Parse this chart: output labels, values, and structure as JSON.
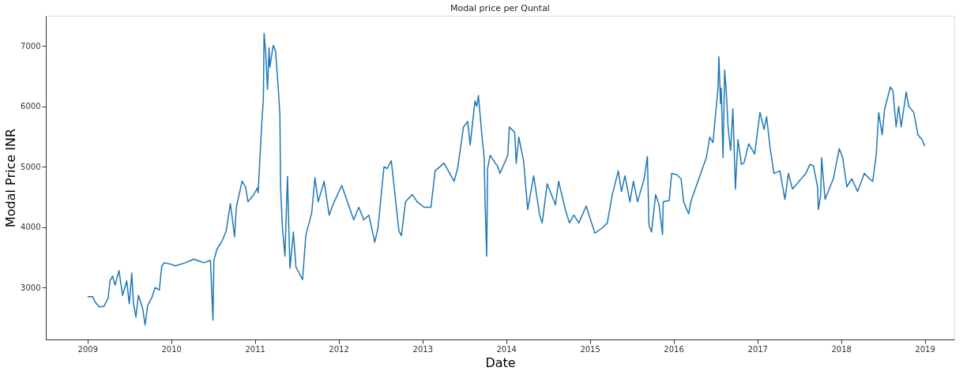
{
  "chart_data": {
    "type": "line",
    "title": "Modal price per Quntal",
    "xlabel": "Date",
    "ylabel": "Modal Price INR",
    "xlim": [
      "2008-07-03",
      "2019-05-10"
    ],
    "xticks": [
      "2009",
      "2010",
      "2011",
      "2012",
      "2013",
      "2014",
      "2015",
      "2016",
      "2017",
      "2018",
      "2019"
    ],
    "ylim": [
      2140,
      7500
    ],
    "yticks": [
      3000,
      4000,
      5000,
      6000,
      7000
    ],
    "grid": false,
    "marker": "none",
    "line_style": "solid",
    "x": [
      "2009-01-01",
      "2009-01-23",
      "2009-02-03",
      "2009-02-21",
      "2009-03-14",
      "2009-04-01",
      "2009-04-09",
      "2009-04-20",
      "2009-05-01",
      "2009-05-18",
      "2009-06-03",
      "2009-06-21",
      "2009-07-02",
      "2009-07-13",
      "2009-07-20",
      "2009-07-31",
      "2009-08-11",
      "2009-08-29",
      "2009-09-09",
      "2009-09-20",
      "2009-10-08",
      "2009-10-23",
      "2009-11-10",
      "2009-11-21",
      "2009-12-02",
      "2009-12-27",
      "2010-01-19",
      "2010-03-04",
      "2010-04-09",
      "2010-05-23",
      "2010-06-21",
      "2010-07-02",
      "2010-07-06",
      "2010-07-20",
      "2010-08-11",
      "2010-08-29",
      "2010-09-16",
      "2010-09-27",
      "2010-10-04",
      "2010-10-12",
      "2010-11-06",
      "2010-11-21",
      "2010-12-02",
      "2010-12-27",
      "2011-01-12",
      "2011-01-15",
      "2011-01-23",
      "2011-01-30",
      "2011-02-07",
      "2011-02-10",
      "2011-02-17",
      "2011-02-25",
      "2011-03-04",
      "2011-03-07",
      "2011-03-22",
      "2011-04-01",
      "2011-04-12",
      "2011-04-20",
      "2011-04-23",
      "2011-05-01",
      "2011-05-12",
      "2011-05-23",
      "2011-06-03",
      "2011-06-18",
      "2011-06-29",
      "2011-07-28",
      "2011-08-11",
      "2011-09-06",
      "2011-09-20",
      "2011-10-04",
      "2011-10-30",
      "2011-11-21",
      "2011-12-13",
      "2012-01-15",
      "2012-03-07",
      "2012-03-29",
      "2012-04-20",
      "2012-05-12",
      "2012-06-07",
      "2012-06-21",
      "2012-07-17",
      "2012-07-31",
      "2012-08-18",
      "2012-08-29",
      "2012-09-20",
      "2012-10-01",
      "2012-10-19",
      "2012-11-17",
      "2012-12-09",
      "2013-01-08",
      "2013-02-07",
      "2013-02-25",
      "2013-04-05",
      "2013-05-19",
      "2013-06-03",
      "2013-06-29",
      "2013-07-17",
      "2013-07-28",
      "2013-08-18",
      "2013-08-26",
      "2013-09-02",
      "2013-09-16",
      "2013-09-27",
      "2013-10-01",
      "2013-10-08",
      "2013-10-12",
      "2013-10-23",
      "2013-11-14",
      "2013-11-24",
      "2013-12-05",
      "2014-01-08",
      "2014-01-15",
      "2014-02-07",
      "2014-02-14",
      "2014-02-25",
      "2014-03-18",
      "2014-04-05",
      "2014-05-01",
      "2014-05-27",
      "2014-06-07",
      "2014-06-29",
      "2014-08-04",
      "2014-08-18",
      "2014-09-16",
      "2014-10-04",
      "2014-10-23",
      "2014-11-14",
      "2014-12-16",
      "2015-01-23",
      "2015-02-25",
      "2015-03-18",
      "2015-04-09",
      "2015-05-05",
      "2015-05-19",
      "2015-06-03",
      "2015-06-25",
      "2015-07-10",
      "2015-07-28",
      "2015-08-26",
      "2015-09-09",
      "2015-09-16",
      "2015-09-27",
      "2015-10-15",
      "2015-10-30",
      "2015-11-14",
      "2015-11-17",
      "2015-12-13",
      "2015-12-24",
      "2016-01-15",
      "2016-02-03",
      "2016-02-14",
      "2016-03-07",
      "2016-03-18",
      "2016-05-23",
      "2016-06-07",
      "2016-06-21",
      "2016-07-13",
      "2016-07-17",
      "2016-07-24",
      "2016-07-27",
      "2016-08-04",
      "2016-08-11",
      "2016-08-18",
      "2016-08-26",
      "2016-09-06",
      "2016-09-16",
      "2016-09-27",
      "2016-10-08",
      "2016-10-23",
      "2016-11-03",
      "2016-11-24",
      "2016-12-20",
      "2017-01-12",
      "2017-01-30",
      "2017-02-10",
      "2017-02-25",
      "2017-03-14",
      "2017-04-09",
      "2017-05-01",
      "2017-05-16",
      "2017-06-03",
      "2017-07-02",
      "2017-07-31",
      "2017-08-18",
      "2017-09-02",
      "2017-09-20",
      "2017-09-24",
      "2017-10-04",
      "2017-10-08",
      "2017-10-23",
      "2017-11-14",
      "2017-11-28",
      "2017-12-24",
      "2018-01-08",
      "2018-01-26",
      "2018-02-17",
      "2018-03-14",
      "2018-04-12",
      "2018-05-05",
      "2018-05-19",
      "2018-06-03",
      "2018-06-14",
      "2018-06-29",
      "2018-07-10",
      "2018-08-04",
      "2018-08-15",
      "2018-08-29",
      "2018-09-09",
      "2018-09-20",
      "2018-10-12",
      "2018-10-23",
      "2018-11-14",
      "2018-12-02",
      "2018-12-20",
      "2019-01-01"
    ],
    "series": [
      {
        "color": "#1f77b4",
        "values": [
          2850,
          2850,
          2760,
          2680,
          2690,
          2830,
          3110,
          3190,
          3040,
          3280,
          2870,
          3110,
          2730,
          3240,
          2740,
          2510,
          2870,
          2660,
          2380,
          2700,
          2830,
          3000,
          2960,
          3360,
          3410,
          3390,
          3360,
          3410,
          3470,
          3410,
          3450,
          2460,
          3450,
          3640,
          3770,
          3940,
          4390,
          4070,
          3840,
          4330,
          4760,
          4670,
          4420,
          4540,
          4650,
          4570,
          5150,
          5660,
          6130,
          7210,
          6900,
          6280,
          6970,
          6650,
          7010,
          6920,
          6350,
          5870,
          4670,
          3990,
          3520,
          4840,
          3320,
          3920,
          3340,
          3130,
          3860,
          4240,
          4820,
          4420,
          4760,
          4200,
          4420,
          4690,
          4120,
          4330,
          4120,
          4200,
          3750,
          3990,
          5000,
          4970,
          5100,
          4720,
          3940,
          3860,
          4420,
          4540,
          4420,
          4330,
          4330,
          4930,
          5060,
          4760,
          4970,
          5660,
          5750,
          5360,
          6090,
          6000,
          6180,
          5570,
          5150,
          4420,
          3520,
          4970,
          5190,
          5060,
          5020,
          4890,
          5190,
          5660,
          5570,
          5060,
          5490,
          5100,
          4290,
          4850,
          4200,
          4070,
          4720,
          4370,
          4760,
          4290,
          4070,
          4200,
          4070,
          4350,
          3900,
          3990,
          4070,
          4540,
          4930,
          4590,
          4850,
          4420,
          4760,
          4420,
          4800,
          5170,
          4030,
          3920,
          4540,
          4370,
          3880,
          4420,
          4440,
          4890,
          4870,
          4800,
          4420,
          4220,
          4440,
          5150,
          5490,
          5400,
          6300,
          6820,
          6050,
          6300,
          5150,
          6600,
          6260,
          5660,
          5270,
          5960,
          4630,
          5450,
          5040,
          5060,
          5380,
          5210,
          5900,
          5620,
          5830,
          5320,
          4890,
          4930,
          4460,
          4890,
          4630,
          4760,
          4890,
          5040,
          5020,
          4670,
          4290,
          4540,
          5150,
          4460,
          4670,
          4800,
          5300,
          5150,
          4670,
          4800,
          4590,
          4890,
          4800,
          4760,
          5190,
          5900,
          5530,
          5960,
          6320,
          6260,
          5660,
          6000,
          5660,
          6240,
          6000,
          5900,
          5530,
          5450,
          5340
        ]
      }
    ]
  }
}
